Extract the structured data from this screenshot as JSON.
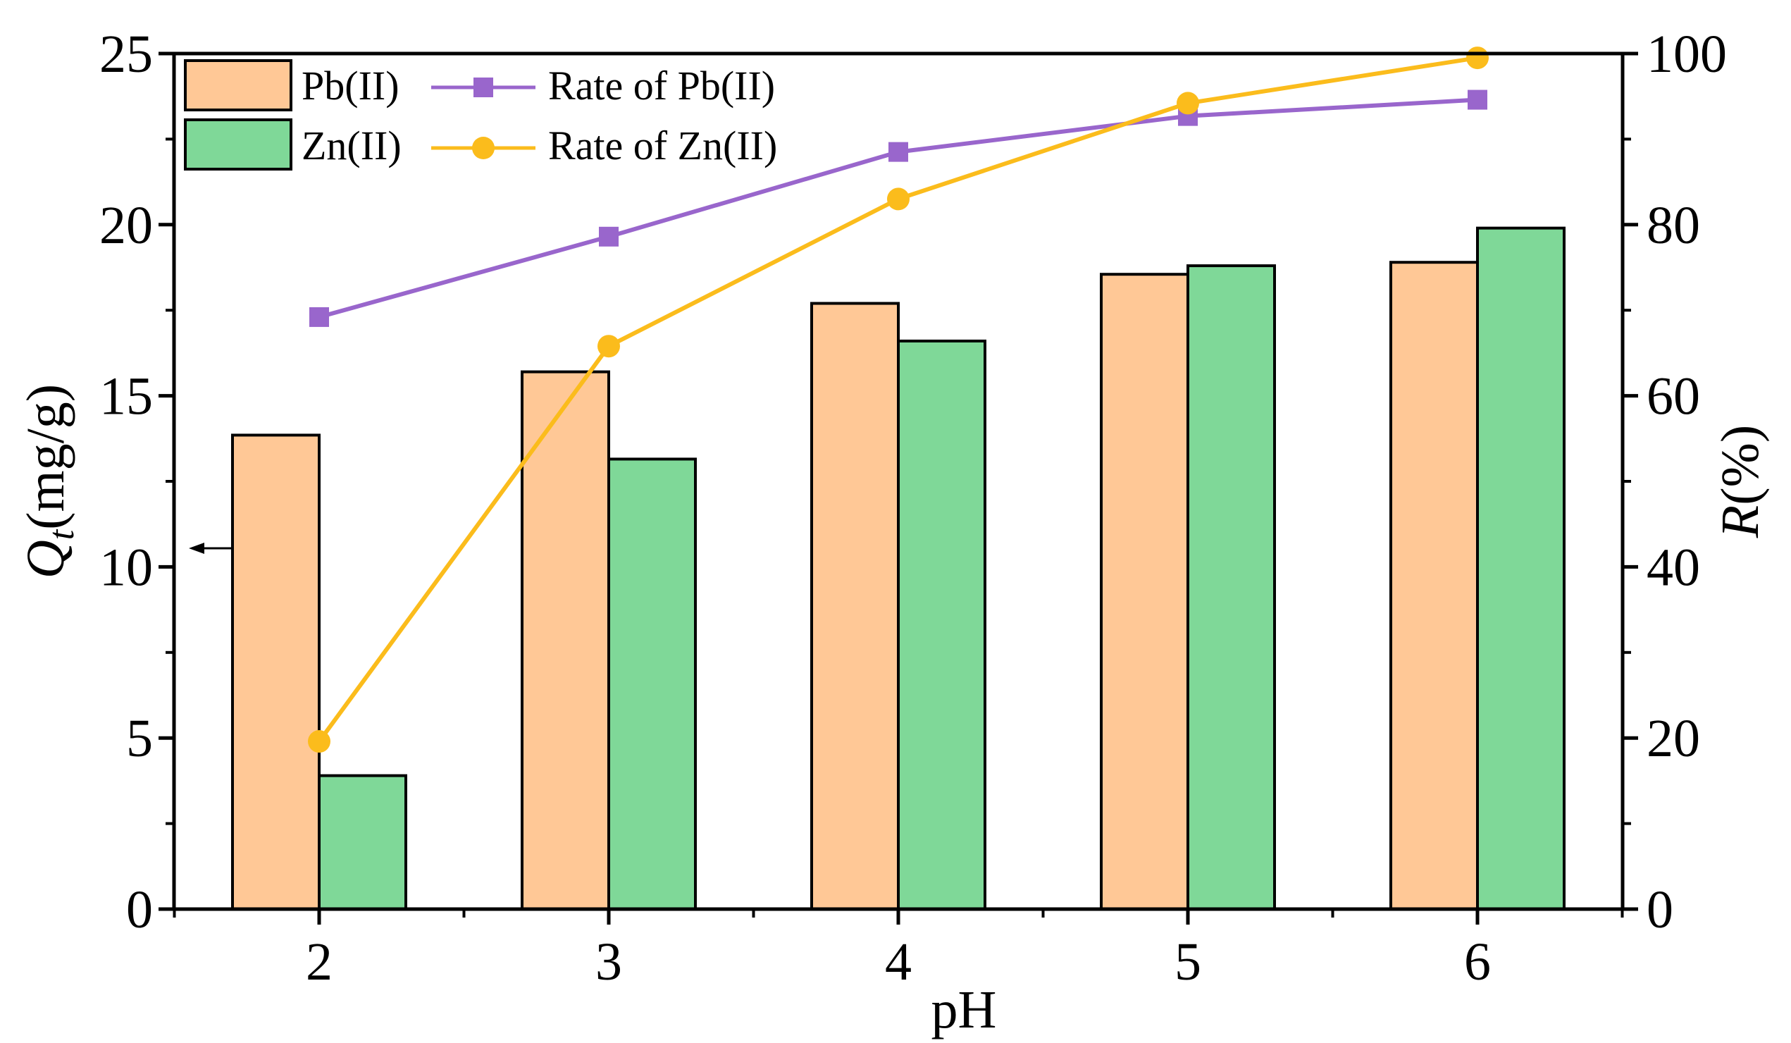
{
  "chart_data": {
    "type": "bar",
    "categories": [
      "2",
      "3",
      "4",
      "5",
      "6"
    ],
    "xlabel": "pH",
    "ylabel": "Qt(mg/g)",
    "ylabel_parts": {
      "symbol": "Q",
      "subscript": "t",
      "unit": "(mg/g)"
    },
    "ylabel_right": "R(%)",
    "ylabel_right_parts": {
      "symbol": "R",
      "unit": "(%)"
    },
    "ylim": [
      0,
      25
    ],
    "ylim_right": [
      0,
      100
    ],
    "yticks": [
      "0",
      "5",
      "10",
      "15",
      "20",
      "25"
    ],
    "yticks_right": [
      "0",
      "20",
      "40",
      "60",
      "80",
      "100"
    ],
    "series": [
      {
        "name": "Pb(II)",
        "kind": "bar",
        "axis": "left",
        "color": "#FFC896",
        "values": [
          13.85,
          15.7,
          17.7,
          18.55,
          18.9
        ]
      },
      {
        "name": "Zn(II)",
        "kind": "bar",
        "axis": "left",
        "color": "#7FD898",
        "values": [
          3.9,
          13.15,
          16.6,
          18.8,
          19.9
        ]
      },
      {
        "name": "Rate of Pb(II)",
        "kind": "line",
        "marker": "square",
        "axis": "right",
        "color": "#9966CC",
        "values": [
          69.2,
          78.6,
          88.5,
          92.7,
          94.6
        ]
      },
      {
        "name": "Rate of Zn(II)",
        "kind": "line",
        "marker": "circle",
        "axis": "right",
        "color": "#FBBC1C",
        "values": [
          19.6,
          65.8,
          83.0,
          94.2,
          99.5
        ]
      }
    ],
    "annotations": [
      {
        "type": "arrow",
        "direction": "left",
        "points_to": "left-axis",
        "at_value": 10.5
      }
    ],
    "legend_position": "top-left",
    "grid": false
  }
}
